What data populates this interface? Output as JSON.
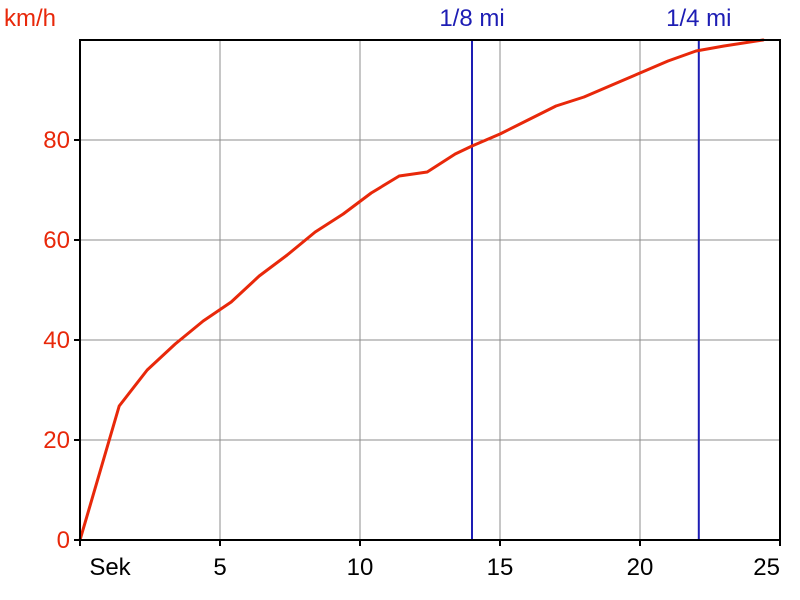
{
  "chart_data": {
    "type": "line",
    "ylabel": "km/h",
    "xlabel": "Sek",
    "xlim": [
      0,
      25
    ],
    "ylim": [
      0,
      100
    ],
    "x_ticks": [
      {
        "value": 0,
        "label": "Sek"
      },
      {
        "value": 5,
        "label": "5"
      },
      {
        "value": 10,
        "label": "10"
      },
      {
        "value": 15,
        "label": "15"
      },
      {
        "value": 20,
        "label": "20"
      },
      {
        "value": 25,
        "label": "25"
      }
    ],
    "y_ticks": [
      {
        "value": 0,
        "label": "0"
      },
      {
        "value": 20,
        "label": "20"
      },
      {
        "value": 40,
        "label": "40"
      },
      {
        "value": 60,
        "label": "60"
      },
      {
        "value": 80,
        "label": "80"
      }
    ],
    "grid": true,
    "series": [
      {
        "color": "#e8280a",
        "points": [
          [
            0.0,
            0.0
          ],
          [
            1.4,
            26.8
          ],
          [
            2.4,
            34.0
          ],
          [
            3.4,
            39.2
          ],
          [
            4.4,
            43.8
          ],
          [
            5.4,
            47.6
          ],
          [
            6.4,
            52.8
          ],
          [
            7.4,
            57.0
          ],
          [
            8.4,
            61.6
          ],
          [
            9.4,
            65.2
          ],
          [
            10.4,
            69.4
          ],
          [
            11.4,
            72.8
          ],
          [
            12.4,
            73.6
          ],
          [
            13.4,
            77.2
          ],
          [
            14.0,
            78.8
          ],
          [
            15.0,
            81.2
          ],
          [
            16.0,
            84.0
          ],
          [
            17.0,
            86.8
          ],
          [
            18.0,
            88.6
          ],
          [
            19.0,
            91.0
          ],
          [
            20.0,
            93.4
          ],
          [
            21.0,
            95.8
          ],
          [
            22.0,
            97.8
          ],
          [
            23.0,
            98.8
          ],
          [
            24.4,
            100.0
          ]
        ]
      }
    ],
    "markers": [
      {
        "label": "1/8 mi",
        "x": 14.0,
        "color": "#1d1db4"
      },
      {
        "label": "1/4 mi",
        "x": 22.1,
        "color": "#1d1db4"
      }
    ],
    "colors": {
      "axis_labels": "#e8280a",
      "x_tick_labels": "#000000",
      "grid": "#8c8c8c",
      "frame": "#000000"
    }
  }
}
